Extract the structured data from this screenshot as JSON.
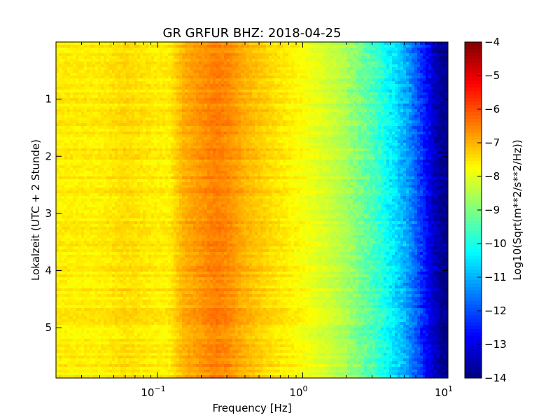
{
  "chart_data": {
    "type": "heatmap",
    "title": "GR GRFUR BHZ: 2018-04-25",
    "xlabel": "Frequency [Hz]",
    "ylabel": "Lokalzeit (UTC + 2 Stunde)",
    "x_scale": "log",
    "xlim": [
      0.02,
      10
    ],
    "ylim": [
      0,
      5.88
    ],
    "y_inverted": true,
    "x_ticks": [
      {
        "value": 0.1,
        "base": "10",
        "exp": "−1"
      },
      {
        "value": 1,
        "base": "10",
        "exp": "0"
      },
      {
        "value": 10,
        "base": "10",
        "exp": "1"
      }
    ],
    "y_ticks": [
      {
        "value": 1,
        "label": "1"
      },
      {
        "value": 2,
        "label": "2"
      },
      {
        "value": 3,
        "label": "3"
      },
      {
        "value": 4,
        "label": "4"
      },
      {
        "value": 5,
        "label": "5"
      }
    ],
    "colorbar": {
      "label": "Log10(Sqrt(m**2/s**2/Hz))",
      "range": [
        -14,
        -4
      ],
      "colormap": "jet",
      "ticks": [
        {
          "value": -4,
          "label": "−4"
        },
        {
          "value": -5,
          "label": "−5"
        },
        {
          "value": -6,
          "label": "−6"
        },
        {
          "value": -7,
          "label": "−7"
        },
        {
          "value": -8,
          "label": "−8"
        },
        {
          "value": -9,
          "label": "−9"
        },
        {
          "value": -10,
          "label": "−10"
        },
        {
          "value": -11,
          "label": "−11"
        },
        {
          "value": -12,
          "label": "−12"
        },
        {
          "value": -13,
          "label": "−13"
        },
        {
          "value": -14,
          "label": "−14"
        }
      ]
    },
    "spectrum_profile": [
      {
        "f": 0.02,
        "v": -7.6
      },
      {
        "f": 0.04,
        "v": -7.6
      },
      {
        "f": 0.06,
        "v": -7.4
      },
      {
        "f": 0.08,
        "v": -7.5
      },
      {
        "f": 0.1,
        "v": -7.6
      },
      {
        "f": 0.12,
        "v": -7.6
      },
      {
        "f": 0.15,
        "v": -7.0
      },
      {
        "f": 0.2,
        "v": -6.7
      },
      {
        "f": 0.25,
        "v": -6.5
      },
      {
        "f": 0.3,
        "v": -6.6
      },
      {
        "f": 0.4,
        "v": -7.0
      },
      {
        "f": 0.6,
        "v": -7.4
      },
      {
        "f": 1.0,
        "v": -7.8
      },
      {
        "f": 1.5,
        "v": -8.2
      },
      {
        "f": 2.0,
        "v": -8.6
      },
      {
        "f": 3.0,
        "v": -9.5
      },
      {
        "f": 4.0,
        "v": -10.3
      },
      {
        "f": 5.0,
        "v": -11.0
      },
      {
        "f": 6.0,
        "v": -11.8
      },
      {
        "f": 7.0,
        "v": -12.6
      },
      {
        "f": 8.0,
        "v": -13.3
      },
      {
        "f": 9.0,
        "v": -13.8
      },
      {
        "f": 10.0,
        "v": -14.0
      }
    ]
  }
}
